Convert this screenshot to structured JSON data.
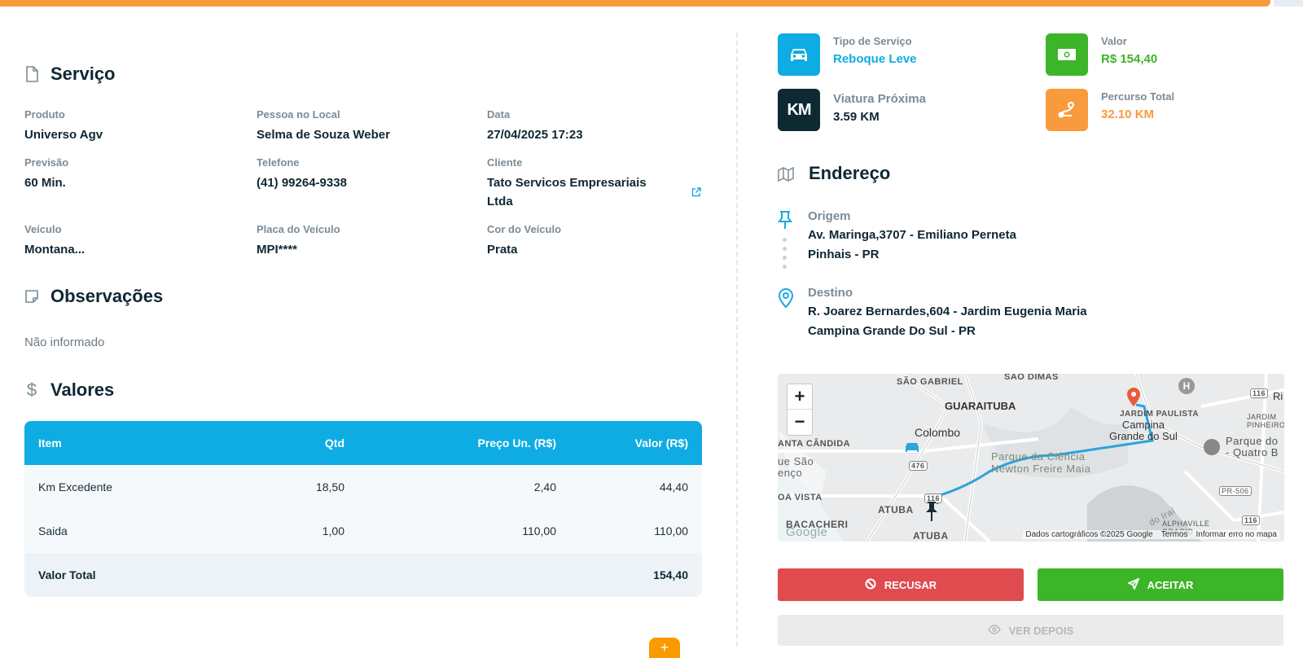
{
  "servico": {
    "title": "Serviço",
    "fields": [
      {
        "label": "Produto",
        "value": "Universo Agv"
      },
      {
        "label": "Pessoa no Local",
        "value": "Selma de Souza Weber"
      },
      {
        "label": "Data",
        "value": "27/04/2025 17:23"
      },
      {
        "label": "Previsão",
        "value": "60 Min."
      },
      {
        "label": "Telefone",
        "value": "(41) 99264-9338"
      },
      {
        "label": "Cliente",
        "value": "Tato Servicos Empresariais Ltda"
      },
      {
        "label": "Veículo",
        "value": "Montana..."
      },
      {
        "label": "Placa do Veículo",
        "value": "MPI****"
      },
      {
        "label": "Cor do Veículo",
        "value": "Prata"
      }
    ]
  },
  "observacoes": {
    "title": "Observações",
    "text": "Não informado"
  },
  "valores": {
    "title": "Valores",
    "headers": [
      "Item",
      "Qtd",
      "Preço Un. (R$)",
      "Valor (R$)"
    ],
    "rows": [
      [
        "Km Excedente",
        "18,50",
        "2,40",
        "44,40"
      ],
      [
        "Saida",
        "1,00",
        "110,00",
        "110,00"
      ]
    ],
    "total_label": "Valor Total",
    "total_value": "154,40"
  },
  "fab_label": "+",
  "stats": {
    "tipo": {
      "label": "Tipo de Serviço",
      "value": "Reboque Leve",
      "color": "#0eace3"
    },
    "valor": {
      "label": "Valor",
      "value": "R$ 154,40",
      "color": "#3cb528"
    },
    "viatura": {
      "label": "Viatura Próxima",
      "value": "3.59 KM",
      "icon_text": "KM"
    },
    "percurso": {
      "label": "Percurso Total",
      "value": "32.10 KM",
      "color": "#f99a3c"
    }
  },
  "endereco": {
    "title": "Endereço",
    "origem_label": "Origem",
    "origem_line1": "Av. Maringa,3707 - Emiliano Perneta",
    "origem_line2": "Pinhais - PR",
    "destino_label": "Destino",
    "destino_line1": "R. Joarez Bernardes,604 - Jardim Eugenia Maria",
    "destino_line2": "Campina Grande Do Sul - PR"
  },
  "map": {
    "zoom_in": "+",
    "zoom_out": "−",
    "labels": {
      "sao_gabriel": "SÃO GABRIEL",
      "sao_dimas": "SÃO DIMAS",
      "guaraituba": "GUARAITUBA",
      "colombo": "Colombo",
      "santa_candida": "ANTA CÂNDIDA",
      "sao_lourenco": "ue São\nenço",
      "boa_vista": "OA VISTA",
      "atuba": "ATUBA",
      "atuba2": "ATUBA",
      "bacacheri": "BACACHERI",
      "alphaville": "ALPHAVILLE\nGRACIO",
      "jardim_paulista": "JARDIM PAULISTA",
      "campina": "Campina\nGrande do Sul",
      "parque_ciencia": "Parque da Ciência\nNewton Freire Maia",
      "parque_quatro": "Parque do\n- Quatro B",
      "jardim_pinheiros": "JARDIM\nPINHEIROS",
      "ri": "Ri",
      "br116a": "116",
      "br116b": "116",
      "br116c": "116",
      "br476": "476",
      "pr506": "PR-506",
      "iraí": "do Iraí",
      "google": "Google"
    },
    "footer": [
      "Dados cartográficos ©2025 Google",
      "Termos",
      "Informar erro no mapa"
    ]
  },
  "buttons": {
    "recusar": "RECUSAR",
    "aceitar": "ACEITAR",
    "ver_depois": "VER DEPOIS"
  }
}
